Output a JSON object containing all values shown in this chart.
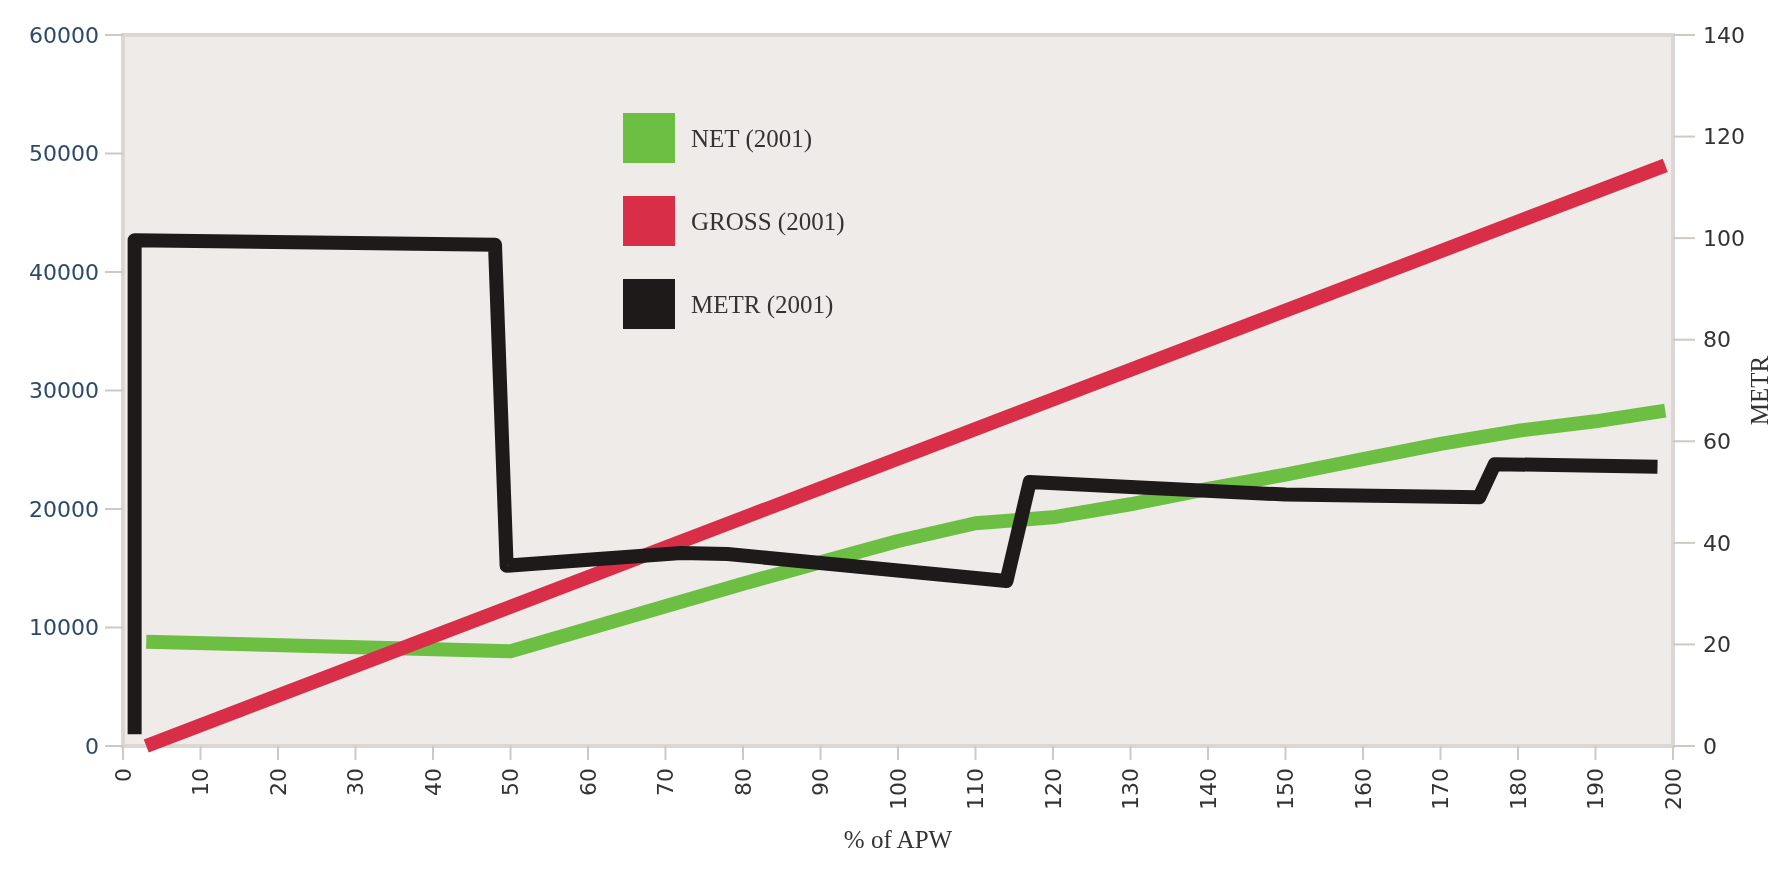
{
  "chart_data": {
    "type": "line",
    "xlabel": "% of APW",
    "y2label": "METR",
    "xlim": [
      0,
      200
    ],
    "xticks": [
      0,
      10,
      20,
      30,
      40,
      50,
      60,
      70,
      80,
      90,
      100,
      110,
      120,
      130,
      140,
      150,
      160,
      170,
      180,
      190,
      200
    ],
    "ylim": [
      0,
      60000
    ],
    "yticks": [
      0,
      10000,
      20000,
      30000,
      40000,
      50000,
      60000
    ],
    "y2lim": [
      0,
      140
    ],
    "y2ticks": [
      0,
      20,
      40,
      60,
      80,
      100,
      120,
      140
    ],
    "legend": "top",
    "grid": false,
    "marker": "none",
    "line_style": "solid",
    "series": [
      {
        "name": "NET (2001)",
        "color": "#6cbf43",
        "axis": "y",
        "x": [
          3,
          50,
          60,
          70,
          80,
          90,
          100,
          110,
          120,
          130,
          140,
          150,
          160,
          170,
          180,
          190,
          199
        ],
        "values": [
          8800,
          8000,
          9900,
          11800,
          13700,
          15500,
          17300,
          18800,
          19300,
          20400,
          21700,
          22900,
          24200,
          25500,
          26600,
          27400,
          28300
        ]
      },
      {
        "name": "GROSS (2001)",
        "color": "#d92e48",
        "axis": "y",
        "x": [
          3,
          199
        ],
        "values": [
          0,
          49000
        ]
      },
      {
        "name": "METR (2001)",
        "color": "#1e1a1a",
        "axis": "y2",
        "x": [
          1.5,
          1.5,
          48,
          49.5,
          72,
          78,
          114,
          117,
          130,
          150,
          175,
          177,
          198
        ],
        "values": [
          2.3,
          99.6,
          98.7,
          35.5,
          38,
          37.8,
          32.5,
          52,
          51,
          49.5,
          49,
          55.5,
          55
        ]
      }
    ]
  }
}
